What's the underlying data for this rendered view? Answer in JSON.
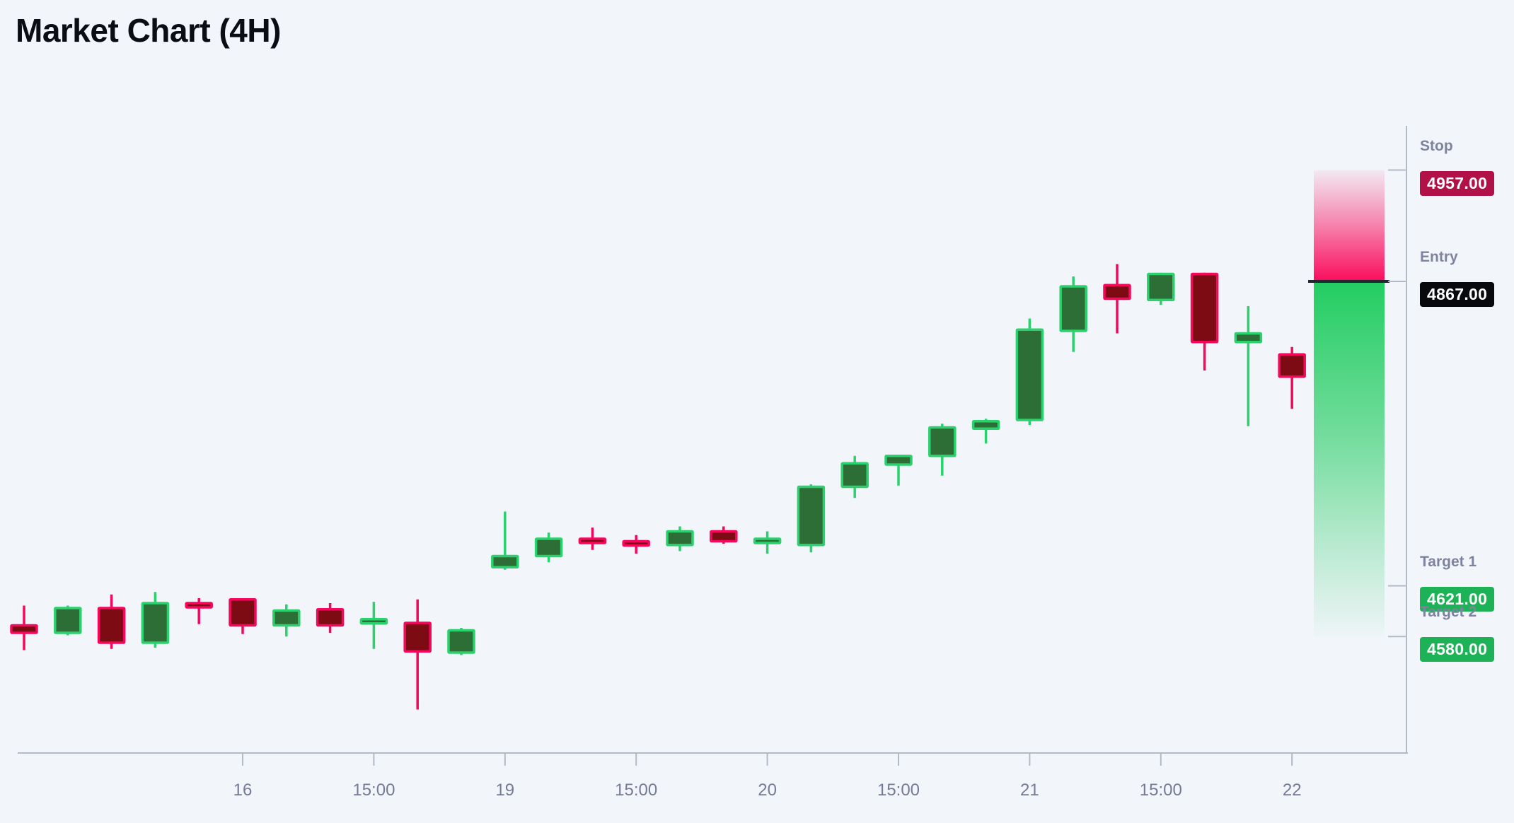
{
  "title": "Market Chart (4H)",
  "colors": {
    "background": "#f2f5fa",
    "title_text": "#0a0e14",
    "axis_line": "#b4b9c6",
    "tick_label": "#757b97",
    "level_label": "#7d83a0",
    "badge_text": "#ffffff",
    "bull_border": "#2bd16d",
    "bull_fill": "#2d6e36",
    "bear_border": "#f5075c",
    "bear_fill": "#7c0b14",
    "risk_zone": "#fa0d5d",
    "reward_zone": "#23cd62",
    "entry_line": "#23272f",
    "stop_badge": "#b11146",
    "entry_badge": "#07090c",
    "target_badge": "#1eb257"
  },
  "chart_data": {
    "type": "candlestick",
    "timeframe": "4H",
    "title": "Market Chart (4H)",
    "grid": "off",
    "x_tick_labels": [
      {
        "index": 5,
        "label": "16"
      },
      {
        "index": 8,
        "label": "15:00"
      },
      {
        "index": 11,
        "label": "19"
      },
      {
        "index": 14,
        "label": "15:00"
      },
      {
        "index": 17,
        "label": "20"
      },
      {
        "index": 20,
        "label": "15:00"
      },
      {
        "index": 23,
        "label": "21"
      },
      {
        "index": 26,
        "label": "15:00"
      },
      {
        "index": 29,
        "label": "22"
      }
    ],
    "candles_ohlc": [
      {
        "open": 4589,
        "high": 4605,
        "low": 4569,
        "close": 4583
      },
      {
        "open": 4583,
        "high": 4605,
        "low": 4581,
        "close": 4603
      },
      {
        "open": 4603,
        "high": 4614,
        "low": 4570,
        "close": 4575
      },
      {
        "open": 4575,
        "high": 4616,
        "low": 4571,
        "close": 4607
      },
      {
        "open": 4607,
        "high": 4611,
        "low": 4590,
        "close": 4605
      },
      {
        "open": 4610,
        "high": 4611,
        "low": 4582,
        "close": 4589
      },
      {
        "open": 4589,
        "high": 4606,
        "low": 4580,
        "close": 4601
      },
      {
        "open": 4602,
        "high": 4607,
        "low": 4583,
        "close": 4589
      },
      {
        "open": 4591,
        "high": 4608,
        "low": 4570,
        "close": 4594
      },
      {
        "open": 4591,
        "high": 4610,
        "low": 4521,
        "close": 4568
      },
      {
        "open": 4567,
        "high": 4587,
        "low": 4565,
        "close": 4585
      },
      {
        "open": 4636,
        "high": 4681,
        "low": 4634,
        "close": 4645
      },
      {
        "open": 4645,
        "high": 4664,
        "low": 4640,
        "close": 4659
      },
      {
        "open": 4659,
        "high": 4668,
        "low": 4650,
        "close": 4657
      },
      {
        "open": 4657,
        "high": 4662,
        "low": 4647,
        "close": 4654
      },
      {
        "open": 4654,
        "high": 4669,
        "low": 4649,
        "close": 4665
      },
      {
        "open": 4665,
        "high": 4669,
        "low": 4655,
        "close": 4657
      },
      {
        "open": 4657,
        "high": 4665,
        "low": 4647,
        "close": 4659
      },
      {
        "open": 4654,
        "high": 4703,
        "low": 4648,
        "close": 4701
      },
      {
        "open": 4701,
        "high": 4726,
        "low": 4692,
        "close": 4720
      },
      {
        "open": 4719,
        "high": 4727,
        "low": 4702,
        "close": 4726
      },
      {
        "open": 4726,
        "high": 4752,
        "low": 4710,
        "close": 4749
      },
      {
        "open": 4748,
        "high": 4756,
        "low": 4736,
        "close": 4754
      },
      {
        "open": 4755,
        "high": 4837,
        "low": 4751,
        "close": 4828
      },
      {
        "open": 4827,
        "high": 4871,
        "low": 4810,
        "close": 4863
      },
      {
        "open": 4864,
        "high": 4881,
        "low": 4825,
        "close": 4853
      },
      {
        "open": 4852,
        "high": 4874,
        "low": 4848,
        "close": 4873
      },
      {
        "open": 4873,
        "high": 4874,
        "low": 4795,
        "close": 4818
      },
      {
        "open": 4818,
        "high": 4847,
        "low": 4750,
        "close": 4825
      },
      {
        "open": 4808,
        "high": 4814,
        "low": 4764,
        "close": 4790
      }
    ],
    "levels": [
      {
        "name": "Stop",
        "value": "4957.00",
        "price": 4957,
        "badge_color": "#b11146"
      },
      {
        "name": "Entry",
        "value": "4867.00",
        "price": 4867,
        "badge_color": "#07090c"
      },
      {
        "name": "Target 1",
        "value": "4621.00",
        "price": 4621,
        "badge_color": "#1eb257"
      },
      {
        "name": "Target 2",
        "value": "4580.00",
        "price": 4580,
        "badge_color": "#1eb257"
      }
    ],
    "zones": [
      {
        "name": "risk-zone",
        "from_price": 4957,
        "to_price": 4867,
        "color": "#fa0d5d"
      },
      {
        "name": "reward-zone",
        "from_price": 4867,
        "to_price": 4580,
        "color": "#23cd62"
      }
    ],
    "y_axis": {
      "visible_price_range": [
        4510,
        4990
      ],
      "side": "right",
      "labels_shown": "levels-only"
    },
    "x_axis": {
      "position": "bottom"
    }
  }
}
